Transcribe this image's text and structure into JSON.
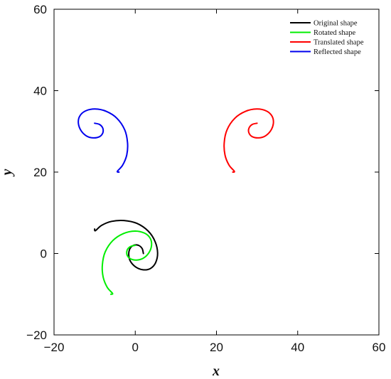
{
  "chart_data": {
    "type": "line",
    "title": "",
    "xlabel": "x",
    "ylabel": "y",
    "xlim": [
      -20,
      60
    ],
    "ylim": [
      -20,
      60
    ],
    "xticks": [
      -20,
      0,
      20,
      40,
      60
    ],
    "yticks": [
      -20,
      0,
      20,
      40,
      60
    ],
    "xtick_labels": [
      "−20",
      "0",
      "20",
      "40",
      "60"
    ],
    "ytick_labels": [
      "−20",
      "0",
      "20",
      "40",
      "60"
    ],
    "grid": false,
    "legend_position": "top-right",
    "series": [
      {
        "name": "Original shape",
        "color": "#000000",
        "x": [
          2.0,
          1.7,
          0.8,
          -0.4,
          -1.3,
          -1.6,
          -1.2,
          0.1,
          1.9,
          3.7,
          5.0,
          5.5,
          4.9,
          3.2,
          0.4,
          -2.8,
          -5.8,
          -8.3,
          -9.8,
          -10.0
        ],
        "y": [
          0.0,
          1.2,
          2.0,
          2.0,
          1.2,
          -0.3,
          -1.9,
          -3.3,
          -4.0,
          -3.7,
          -2.3,
          0.1,
          2.9,
          5.5,
          7.4,
          8.1,
          7.9,
          6.9,
          5.6,
          6.0
        ]
      },
      {
        "name": "Rotated shape",
        "color": "#00ee00",
        "x": [
          0.0,
          -1.2,
          -2.0,
          -2.0,
          -1.2,
          0.3,
          1.9,
          3.3,
          4.0,
          3.7,
          2.3,
          -0.1,
          -2.9,
          -5.5,
          -7.4,
          -8.1,
          -7.9,
          -6.9,
          -5.6,
          -6.0
        ],
        "y": [
          2.0,
          1.7,
          0.8,
          -0.4,
          -1.3,
          -1.6,
          -1.2,
          0.1,
          1.9,
          3.7,
          5.0,
          5.5,
          4.9,
          3.2,
          0.4,
          -2.8,
          -5.8,
          -8.3,
          -9.8,
          -10.0
        ]
      },
      {
        "name": "Translated shape",
        "color": "#ff0000",
        "x": [
          30.0,
          28.8,
          28.0,
          28.0,
          28.8,
          30.3,
          31.9,
          33.3,
          34.0,
          33.7,
          32.3,
          29.9,
          27.1,
          24.5,
          22.6,
          21.9,
          22.1,
          23.1,
          24.4,
          24.0
        ],
        "y": [
          32.0,
          31.7,
          30.8,
          29.6,
          28.7,
          28.4,
          28.8,
          30.1,
          31.9,
          33.7,
          35.0,
          35.5,
          34.9,
          33.2,
          30.4,
          27.2,
          24.2,
          21.7,
          20.2,
          20.0
        ]
      },
      {
        "name": "Reflected shape",
        "color": "#0000ee",
        "x": [
          -10.0,
          -8.8,
          -8.0,
          -8.0,
          -8.8,
          -10.3,
          -11.9,
          -13.3,
          -14.0,
          -13.7,
          -12.3,
          -9.9,
          -7.1,
          -4.5,
          -2.6,
          -1.9,
          -2.1,
          -3.1,
          -4.4,
          -4.0
        ],
        "y": [
          32.0,
          31.7,
          30.8,
          29.6,
          28.7,
          28.4,
          28.8,
          30.1,
          31.9,
          33.7,
          35.0,
          35.5,
          34.9,
          33.2,
          30.4,
          27.2,
          24.2,
          21.7,
          20.2,
          20.0
        ]
      }
    ]
  }
}
